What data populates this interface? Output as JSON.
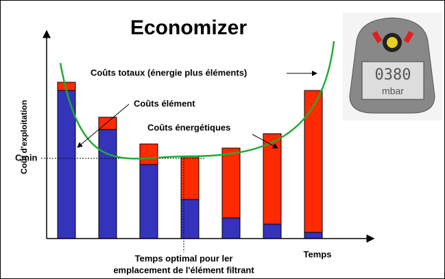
{
  "chart_data": {
    "type": "bar",
    "stacked": true,
    "title": "Economizer",
    "y_label": "Coût d'exploitation",
    "x_label": "Temps",
    "categories": [
      null,
      null,
      null,
      null,
      null,
      null,
      null
    ],
    "series": [
      {
        "color": "#3333bb",
        "values": [
          72,
          53,
          36,
          19,
          10,
          7,
          3
        ]
      },
      {
        "color": "#ff2a00",
        "values": [
          4,
          6,
          10,
          21,
          34,
          44,
          69
        ]
      }
    ],
    "ylim": [
      0,
      100
    ],
    "annotations": {
      "total": "Coûts totaux (énergie plus éléments)",
      "element": "Coûts élément",
      "energy": "Coûts énergétiques",
      "cmin": "Cmin",
      "optimal_1": "Temps optimal pour ler",
      "optimal_2": "emplacement de l'élément filtrant"
    },
    "device": {
      "display": "0380",
      "unit": "mbar"
    }
  }
}
